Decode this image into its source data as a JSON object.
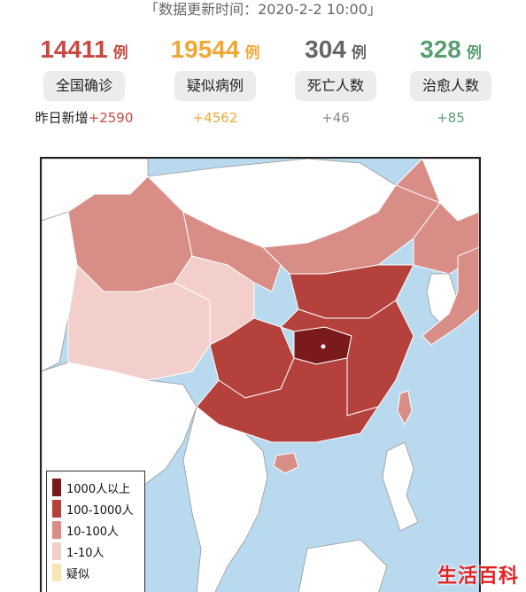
{
  "header": {
    "update_time": "「数据更新时间：2020-2-2 10:00」"
  },
  "stats": [
    {
      "key": "confirmed",
      "count": "14411",
      "unit": "例",
      "label": "全国确诊",
      "delta_prefix": "昨日新增",
      "delta": "+2590",
      "color": "#c9483f"
    },
    {
      "key": "suspected",
      "count": "19544",
      "unit": "例",
      "label": "疑似病例",
      "delta_prefix": "",
      "delta": "+4562",
      "color": "#f0a835"
    },
    {
      "key": "deaths",
      "count": "304",
      "unit": "例",
      "label": "死亡人数",
      "delta_prefix": "",
      "delta": "+46",
      "color": "#666666"
    },
    {
      "key": "cured",
      "count": "328",
      "unit": "例",
      "label": "治愈人数",
      "delta_prefix": "",
      "delta": "+85",
      "color": "#5a9e6f"
    }
  ],
  "legend": [
    {
      "label": "1000人以上",
      "color": "#7a1a1d"
    },
    {
      "label": "100-1000人",
      "color": "#b5413d"
    },
    {
      "label": "10-100人",
      "color": "#d98d87"
    },
    {
      "label": "1-10人",
      "color": "#f2cfcb"
    },
    {
      "label": "疑似",
      "color": "#f7e6b4"
    }
  ],
  "colors": {
    "sea": "#b9d9ee",
    "foreign_land": "#ffffff",
    "level_1000_plus": "#7a1a1d",
    "level_100_1000": "#b5413d",
    "level_10_100": "#d98d87",
    "level_1_10": "#f2cfcb"
  },
  "watermark": "生活百科"
}
